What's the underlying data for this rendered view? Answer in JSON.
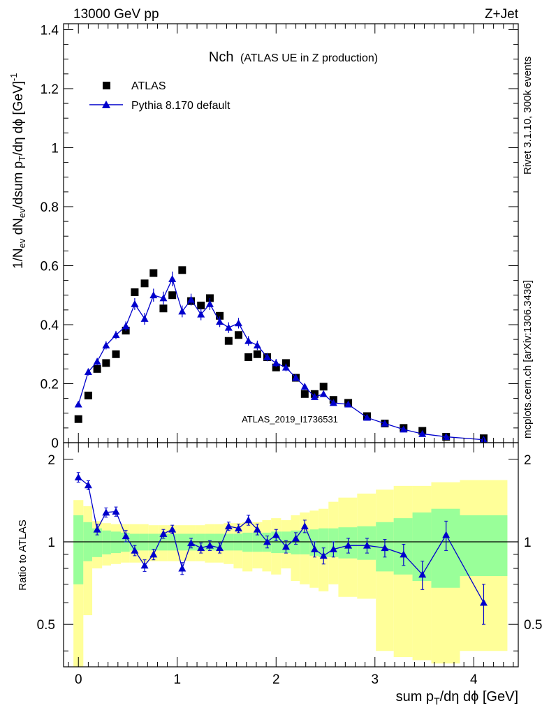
{
  "header": {
    "left": "13000 GeV pp",
    "right": "Z+Jet"
  },
  "side": {
    "rivet": "Rivet 3.1.10,  300k events",
    "mcplots": "mcplots.cern.ch [arXiv:1306.3436]"
  },
  "watermark": "ATLAS_2019_I1736531",
  "colors": {
    "mc": "#0000cc",
    "green": "#99ff99",
    "yellow": "#ffff99",
    "data": "#000000"
  },
  "chart_data": [
    {
      "type": "scatter",
      "title_main": "Nch",
      "title_sub": "(ATLAS UE in Z production)",
      "xlabel": "sum p_T/dη dϕ [GeV]",
      "ylabel": "1/N_ev dN_ev/dsum p_T/dη dϕ  [GeV]^-1",
      "xlim": [
        -0.15,
        4.45
      ],
      "ylim": [
        0,
        1.42
      ],
      "yticks": [
        0,
        0.2,
        0.4,
        0.6,
        0.8,
        1,
        1.2,
        1.4
      ],
      "ytick_labels": [
        "0",
        "0.2",
        "0.4",
        "0.6",
        "0.8",
        "1",
        "1.2",
        "1.4"
      ],
      "legend": [
        "ATLAS",
        "Pythia 8.170 default"
      ],
      "series": [
        {
          "name": "ATLAS",
          "marker": "square",
          "x": [
            0,
            0.1,
            0.19,
            0.28,
            0.38,
            0.48,
            0.57,
            0.67,
            0.76,
            0.86,
            0.95,
            1.05,
            1.14,
            1.24,
            1.33,
            1.43,
            1.52,
            1.62,
            1.72,
            1.81,
            1.91,
            2.0,
            2.1,
            2.2,
            2.29,
            2.39,
            2.48,
            2.58,
            2.73,
            2.92,
            3.1,
            3.29,
            3.48,
            3.72,
            4.1
          ],
          "y": [
            0.08,
            0.16,
            0.25,
            0.27,
            0.3,
            0.38,
            0.51,
            0.54,
            0.575,
            0.455,
            0.5,
            0.585,
            0.48,
            0.465,
            0.49,
            0.43,
            0.345,
            0.365,
            0.29,
            0.3,
            0.29,
            0.255,
            0.27,
            0.22,
            0.165,
            0.165,
            0.19,
            0.145,
            0.135,
            0.09,
            0.065,
            0.05,
            0.04,
            0.02,
            0.015
          ]
        },
        {
          "name": "Pythia 8.170 default",
          "marker": "triangle",
          "x": [
            0,
            0.1,
            0.19,
            0.28,
            0.38,
            0.48,
            0.57,
            0.67,
            0.76,
            0.86,
            0.95,
            1.05,
            1.14,
            1.24,
            1.33,
            1.43,
            1.52,
            1.62,
            1.72,
            1.81,
            1.91,
            2.0,
            2.1,
            2.2,
            2.29,
            2.39,
            2.48,
            2.58,
            2.73,
            2.92,
            3.1,
            3.29,
            3.48,
            3.72,
            4.1
          ],
          "y": [
            0.13,
            0.24,
            0.275,
            0.33,
            0.365,
            0.395,
            0.47,
            0.42,
            0.5,
            0.49,
            0.555,
            0.445,
            0.485,
            0.435,
            0.47,
            0.41,
            0.39,
            0.405,
            0.345,
            0.33,
            0.29,
            0.27,
            0.255,
            0.22,
            0.19,
            0.155,
            0.165,
            0.135,
            0.13,
            0.085,
            0.065,
            0.045,
            0.03,
            0.02,
            0.01
          ],
          "err": [
            0.01,
            0.012,
            0.012,
            0.014,
            0.014,
            0.016,
            0.02,
            0.02,
            0.022,
            0.022,
            0.025,
            0.02,
            0.02,
            0.02,
            0.02,
            0.018,
            0.018,
            0.018,
            0.016,
            0.016,
            0.014,
            0.014,
            0.013,
            0.012,
            0.011,
            0.01,
            0.01,
            0.009,
            0.008,
            0.006,
            0.005,
            0.004,
            0.003,
            0.002,
            0.002
          ]
        }
      ]
    },
    {
      "type": "line",
      "ylabel": "Ratio to ATLAS",
      "xlim": [
        -0.15,
        4.45
      ],
      "ylim": [
        0.35,
        2.3
      ],
      "yticks": [
        0.5,
        1,
        2
      ],
      "ytick_labels": [
        "0.5",
        "1",
        "2"
      ],
      "xticks": [
        0,
        1,
        2,
        3,
        4
      ],
      "xtick_labels": [
        "0",
        "1",
        "2",
        "3",
        "4"
      ],
      "series": [
        {
          "name": "Pythia 8.170 default / ATLAS",
          "x": [
            0,
            0.1,
            0.19,
            0.28,
            0.38,
            0.48,
            0.57,
            0.67,
            0.76,
            0.86,
            0.95,
            1.05,
            1.14,
            1.24,
            1.33,
            1.43,
            1.52,
            1.62,
            1.72,
            1.81,
            1.91,
            2.0,
            2.1,
            2.2,
            2.29,
            2.39,
            2.48,
            2.58,
            2.73,
            2.92,
            3.1,
            3.29,
            3.48,
            3.72,
            4.1
          ],
          "y": [
            1.72,
            1.61,
            1.11,
            1.28,
            1.29,
            1.05,
            0.93,
            0.82,
            0.9,
            1.07,
            1.11,
            0.8,
            0.99,
            0.95,
            0.97,
            0.95,
            1.14,
            1.12,
            1.2,
            1.11,
            1.0,
            1.06,
            0.96,
            1.03,
            1.14,
            0.94,
            0.89,
            0.94,
            0.97,
            0.97,
            0.95,
            0.9,
            0.76,
            1.06,
            0.6
          ],
          "err": [
            0.07,
            0.06,
            0.05,
            0.05,
            0.05,
            0.05,
            0.04,
            0.04,
            0.04,
            0.04,
            0.04,
            0.04,
            0.04,
            0.04,
            0.04,
            0.04,
            0.04,
            0.04,
            0.05,
            0.05,
            0.05,
            0.05,
            0.05,
            0.05,
            0.06,
            0.06,
            0.06,
            0.06,
            0.06,
            0.06,
            0.07,
            0.08,
            0.09,
            0.13,
            0.1
          ]
        }
      ],
      "bands": {
        "edges": [
          -0.05,
          0.05,
          0.14,
          0.24,
          0.33,
          0.43,
          0.52,
          0.62,
          0.71,
          0.81,
          0.9,
          1.0,
          1.09,
          1.19,
          1.28,
          1.38,
          1.47,
          1.57,
          1.66,
          1.76,
          1.86,
          1.95,
          2.05,
          2.15,
          2.24,
          2.34,
          2.43,
          2.53,
          2.63,
          2.82,
          3.01,
          3.19,
          3.38,
          3.57,
          3.86,
          4.34
        ],
        "green_lo": [
          0.7,
          0.85,
          0.88,
          0.9,
          0.91,
          0.92,
          0.93,
          0.93,
          0.93,
          0.93,
          0.93,
          0.93,
          0.93,
          0.93,
          0.93,
          0.93,
          0.93,
          0.93,
          0.92,
          0.92,
          0.92,
          0.91,
          0.91,
          0.9,
          0.9,
          0.89,
          0.88,
          0.88,
          0.87,
          0.86,
          0.78,
          0.76,
          0.72,
          0.68,
          0.75
        ],
        "green_hi": [
          1.25,
          1.18,
          1.12,
          1.1,
          1.09,
          1.08,
          1.07,
          1.07,
          1.07,
          1.07,
          1.07,
          1.07,
          1.07,
          1.07,
          1.07,
          1.07,
          1.07,
          1.07,
          1.08,
          1.08,
          1.08,
          1.09,
          1.09,
          1.1,
          1.1,
          1.11,
          1.12,
          1.12,
          1.13,
          1.14,
          1.18,
          1.22,
          1.28,
          1.32,
          1.25
        ],
        "yellow_lo": [
          0.35,
          0.54,
          0.8,
          0.82,
          0.83,
          0.84,
          0.84,
          0.84,
          0.85,
          0.85,
          0.85,
          0.85,
          0.85,
          0.85,
          0.84,
          0.84,
          0.83,
          0.8,
          0.78,
          0.8,
          0.78,
          0.76,
          0.8,
          0.72,
          0.7,
          0.68,
          0.66,
          0.7,
          0.63,
          0.62,
          0.4,
          0.38,
          0.37,
          0.36,
          0.4
        ],
        "yellow_hi": [
          1.42,
          1.35,
          1.19,
          1.17,
          1.16,
          1.16,
          1.16,
          1.16,
          1.15,
          1.15,
          1.15,
          1.15,
          1.15,
          1.15,
          1.16,
          1.16,
          1.17,
          1.17,
          1.18,
          1.18,
          1.2,
          1.22,
          1.2,
          1.25,
          1.28,
          1.3,
          1.32,
          1.4,
          1.45,
          1.5,
          1.55,
          1.6,
          1.6,
          1.65,
          1.68
        ]
      }
    }
  ]
}
